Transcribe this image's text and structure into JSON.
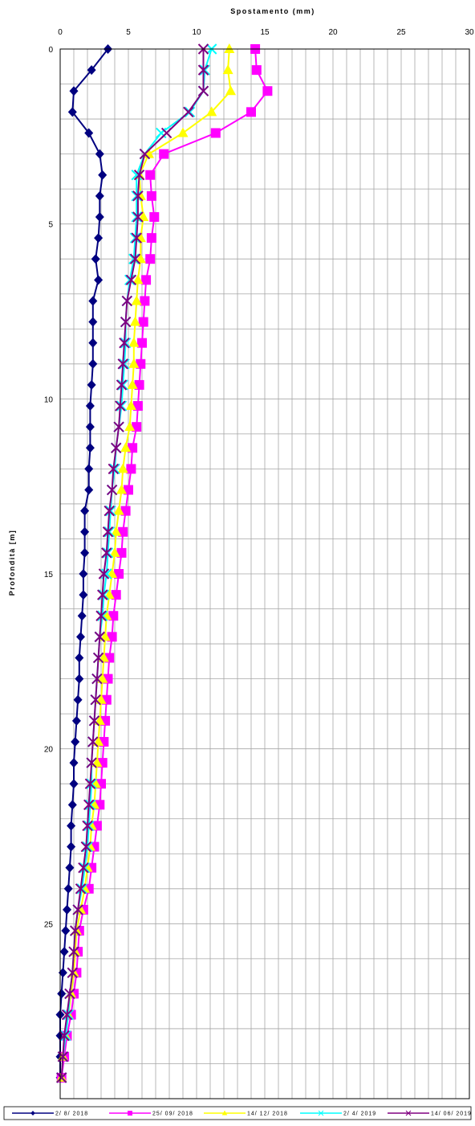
{
  "chart_data": {
    "type": "line",
    "xlabel": "Spostamento (mm)",
    "ylabel": "Profondità [m]",
    "xlim": [
      0,
      30
    ],
    "ylim": [
      0,
      30
    ],
    "y_inverted": true,
    "x_axis_position": "top",
    "x_ticks": [
      0,
      5,
      10,
      15,
      20,
      25,
      30
    ],
    "y_ticks": [
      0,
      5,
      10,
      15,
      20,
      25
    ],
    "grid": true,
    "legend_position": "bottom",
    "series": [
      {
        "name": "2/ 8/ 2018",
        "color": "#000080",
        "marker": "diamond",
        "points": [
          [
            3.5,
            0
          ],
          [
            2.3,
            0.6
          ],
          [
            1.0,
            1.2
          ],
          [
            0.9,
            1.8
          ],
          [
            2.1,
            2.4
          ],
          [
            2.9,
            3.0
          ],
          [
            3.1,
            3.6
          ],
          [
            2.9,
            4.2
          ],
          [
            2.9,
            4.8
          ],
          [
            2.8,
            5.4
          ],
          [
            2.6,
            6.0
          ],
          [
            2.8,
            6.6
          ],
          [
            2.4,
            7.2
          ],
          [
            2.4,
            7.8
          ],
          [
            2.4,
            8.4
          ],
          [
            2.4,
            9.0
          ],
          [
            2.3,
            9.6
          ],
          [
            2.2,
            10.2
          ],
          [
            2.2,
            10.8
          ],
          [
            2.2,
            11.4
          ],
          [
            2.1,
            12.0
          ],
          [
            2.1,
            12.6
          ],
          [
            1.8,
            13.2
          ],
          [
            1.8,
            13.8
          ],
          [
            1.8,
            14.4
          ],
          [
            1.7,
            15.0
          ],
          [
            1.7,
            15.6
          ],
          [
            1.6,
            16.2
          ],
          [
            1.5,
            16.8
          ],
          [
            1.4,
            17.4
          ],
          [
            1.4,
            18.0
          ],
          [
            1.3,
            18.6
          ],
          [
            1.2,
            19.2
          ],
          [
            1.1,
            19.8
          ],
          [
            1.0,
            20.4
          ],
          [
            1.0,
            21.0
          ],
          [
            0.9,
            21.6
          ],
          [
            0.8,
            22.2
          ],
          [
            0.8,
            22.8
          ],
          [
            0.7,
            23.4
          ],
          [
            0.6,
            24.0
          ],
          [
            0.5,
            24.6
          ],
          [
            0.4,
            25.2
          ],
          [
            0.3,
            25.8
          ],
          [
            0.2,
            26.4
          ],
          [
            0.1,
            27.0
          ],
          [
            0.0,
            27.6
          ],
          [
            0.0,
            28.2
          ],
          [
            0.0,
            28.8
          ],
          [
            0.0,
            29.4
          ]
        ]
      },
      {
        "name": "25/ 09/ 2018",
        "color": "#ff00ff",
        "marker": "square",
        "points": [
          [
            14.3,
            0
          ],
          [
            14.4,
            0.6
          ],
          [
            15.2,
            1.2
          ],
          [
            14.0,
            1.8
          ],
          [
            11.4,
            2.4
          ],
          [
            7.6,
            3.0
          ],
          [
            6.6,
            3.6
          ],
          [
            6.7,
            4.2
          ],
          [
            6.9,
            4.8
          ],
          [
            6.7,
            5.4
          ],
          [
            6.6,
            6.0
          ],
          [
            6.3,
            6.6
          ],
          [
            6.2,
            7.2
          ],
          [
            6.1,
            7.8
          ],
          [
            6.0,
            8.4
          ],
          [
            5.9,
            9.0
          ],
          [
            5.8,
            9.6
          ],
          [
            5.7,
            10.2
          ],
          [
            5.6,
            10.8
          ],
          [
            5.3,
            11.4
          ],
          [
            5.2,
            12.0
          ],
          [
            5.0,
            12.6
          ],
          [
            4.8,
            13.2
          ],
          [
            4.6,
            13.8
          ],
          [
            4.5,
            14.4
          ],
          [
            4.3,
            15.0
          ],
          [
            4.1,
            15.6
          ],
          [
            3.9,
            16.2
          ],
          [
            3.8,
            16.8
          ],
          [
            3.6,
            17.4
          ],
          [
            3.5,
            18.0
          ],
          [
            3.4,
            18.6
          ],
          [
            3.3,
            19.2
          ],
          [
            3.2,
            19.8
          ],
          [
            3.1,
            20.4
          ],
          [
            3.0,
            21.0
          ],
          [
            2.9,
            21.6
          ],
          [
            2.7,
            22.2
          ],
          [
            2.5,
            22.8
          ],
          [
            2.3,
            23.4
          ],
          [
            2.1,
            24.0
          ],
          [
            1.7,
            24.6
          ],
          [
            1.4,
            25.2
          ],
          [
            1.3,
            25.8
          ],
          [
            1.2,
            26.4
          ],
          [
            1.0,
            27.0
          ],
          [
            0.8,
            27.6
          ],
          [
            0.5,
            28.2
          ],
          [
            0.3,
            28.8
          ],
          [
            0.1,
            29.4
          ]
        ]
      },
      {
        "name": "14/ 12/ 2018",
        "color": "#ffff00",
        "marker": "triangle",
        "points": [
          [
            12.4,
            0
          ],
          [
            12.3,
            0.6
          ],
          [
            12.5,
            1.2
          ],
          [
            11.1,
            1.8
          ],
          [
            9.0,
            2.4
          ],
          [
            6.5,
            3.0
          ],
          [
            5.8,
            3.6
          ],
          [
            5.9,
            4.2
          ],
          [
            6.1,
            4.8
          ],
          [
            5.9,
            5.4
          ],
          [
            5.9,
            6.0
          ],
          [
            5.7,
            6.6
          ],
          [
            5.6,
            7.2
          ],
          [
            5.5,
            7.8
          ],
          [
            5.4,
            8.4
          ],
          [
            5.4,
            9.0
          ],
          [
            5.3,
            9.6
          ],
          [
            5.2,
            10.2
          ],
          [
            5.1,
            10.8
          ],
          [
            4.8,
            11.4
          ],
          [
            4.6,
            12.0
          ],
          [
            4.5,
            12.6
          ],
          [
            4.3,
            13.2
          ],
          [
            4.1,
            13.8
          ],
          [
            4.0,
            14.4
          ],
          [
            3.8,
            15.0
          ],
          [
            3.6,
            15.6
          ],
          [
            3.4,
            16.2
          ],
          [
            3.3,
            16.8
          ],
          [
            3.2,
            17.4
          ],
          [
            3.1,
            18.0
          ],
          [
            3.0,
            18.6
          ],
          [
            2.9,
            19.2
          ],
          [
            2.8,
            19.8
          ],
          [
            2.7,
            20.4
          ],
          [
            2.6,
            21.0
          ],
          [
            2.5,
            21.6
          ],
          [
            2.3,
            22.2
          ],
          [
            2.2,
            22.8
          ],
          [
            2.0,
            23.4
          ],
          [
            1.8,
            24.0
          ],
          [
            1.5,
            24.6
          ],
          [
            1.2,
            25.2
          ],
          [
            1.1,
            25.8
          ],
          [
            1.0,
            26.4
          ],
          [
            0.8,
            27.0
          ],
          [
            0.6,
            27.6
          ],
          [
            0.4,
            28.2
          ],
          [
            0.2,
            28.8
          ],
          [
            0.1,
            29.4
          ]
        ]
      },
      {
        "name": "2/ 4/ 2019",
        "color": "#00ffff",
        "marker": "x",
        "points": [
          [
            11.1,
            0
          ],
          [
            10.6,
            0.6
          ],
          [
            10.5,
            1.2
          ],
          [
            9.5,
            1.8
          ],
          [
            7.4,
            2.4
          ],
          [
            6.2,
            3.0
          ],
          [
            5.6,
            3.6
          ],
          [
            5.6,
            4.2
          ],
          [
            5.6,
            4.8
          ],
          [
            5.5,
            5.4
          ],
          [
            5.4,
            6.0
          ],
          [
            5.1,
            6.6
          ],
          [
            4.9,
            7.2
          ],
          [
            4.8,
            7.8
          ],
          [
            4.8,
            8.4
          ],
          [
            4.7,
            9.0
          ],
          [
            4.6,
            9.6
          ],
          [
            4.5,
            10.2
          ],
          [
            4.3,
            10.8
          ],
          [
            4.1,
            11.4
          ],
          [
            4.0,
            12.0
          ],
          [
            3.8,
            12.6
          ],
          [
            3.7,
            13.2
          ],
          [
            3.6,
            13.8
          ],
          [
            3.5,
            14.4
          ],
          [
            3.4,
            15.0
          ],
          [
            3.2,
            15.6
          ],
          [
            3.1,
            16.2
          ],
          [
            2.9,
            16.8
          ],
          [
            2.8,
            17.4
          ],
          [
            2.7,
            18.0
          ],
          [
            2.6,
            18.6
          ],
          [
            2.5,
            19.2
          ],
          [
            2.4,
            19.8
          ],
          [
            2.3,
            20.4
          ],
          [
            2.3,
            21.0
          ],
          [
            2.2,
            21.6
          ],
          [
            2.1,
            22.2
          ],
          [
            2.0,
            22.8
          ],
          [
            1.8,
            23.4
          ],
          [
            1.6,
            24.0
          ],
          [
            1.3,
            24.6
          ],
          [
            1.1,
            25.2
          ],
          [
            1.0,
            25.8
          ],
          [
            0.9,
            26.4
          ],
          [
            0.7,
            27.0
          ],
          [
            0.6,
            27.6
          ],
          [
            0.4,
            28.2
          ],
          [
            0.2,
            28.8
          ],
          [
            0.1,
            29.4
          ]
        ]
      },
      {
        "name": "14/ 06/ 2019",
        "color": "#800080",
        "marker": "x",
        "points": [
          [
            10.5,
            0
          ],
          [
            10.5,
            0.6
          ],
          [
            10.5,
            1.2
          ],
          [
            9.4,
            1.8
          ],
          [
            7.8,
            2.4
          ],
          [
            6.2,
            3.0
          ],
          [
            5.8,
            3.6
          ],
          [
            5.7,
            4.2
          ],
          [
            5.7,
            4.8
          ],
          [
            5.6,
            5.4
          ],
          [
            5.5,
            6.0
          ],
          [
            5.2,
            6.6
          ],
          [
            4.9,
            7.2
          ],
          [
            4.8,
            7.8
          ],
          [
            4.7,
            8.4
          ],
          [
            4.6,
            9.0
          ],
          [
            4.5,
            9.6
          ],
          [
            4.4,
            10.2
          ],
          [
            4.3,
            10.8
          ],
          [
            4.1,
            11.4
          ],
          [
            3.9,
            12.0
          ],
          [
            3.8,
            12.6
          ],
          [
            3.6,
            13.2
          ],
          [
            3.5,
            13.8
          ],
          [
            3.4,
            14.4
          ],
          [
            3.2,
            15.0
          ],
          [
            3.1,
            15.6
          ],
          [
            3.0,
            16.2
          ],
          [
            2.9,
            16.8
          ],
          [
            2.8,
            17.4
          ],
          [
            2.7,
            18.0
          ],
          [
            2.6,
            18.6
          ],
          [
            2.5,
            19.2
          ],
          [
            2.4,
            19.8
          ],
          [
            2.3,
            20.4
          ],
          [
            2.2,
            21.0
          ],
          [
            2.1,
            21.6
          ],
          [
            2.0,
            22.2
          ],
          [
            1.9,
            22.8
          ],
          [
            1.7,
            23.4
          ],
          [
            1.5,
            24.0
          ],
          [
            1.3,
            24.6
          ],
          [
            1.1,
            25.2
          ],
          [
            1.0,
            25.8
          ],
          [
            0.9,
            26.4
          ],
          [
            0.7,
            27.0
          ],
          [
            0.5,
            27.6
          ],
          [
            0.3,
            28.2
          ],
          [
            0.2,
            28.8
          ],
          [
            0.1,
            29.4
          ]
        ]
      }
    ]
  }
}
